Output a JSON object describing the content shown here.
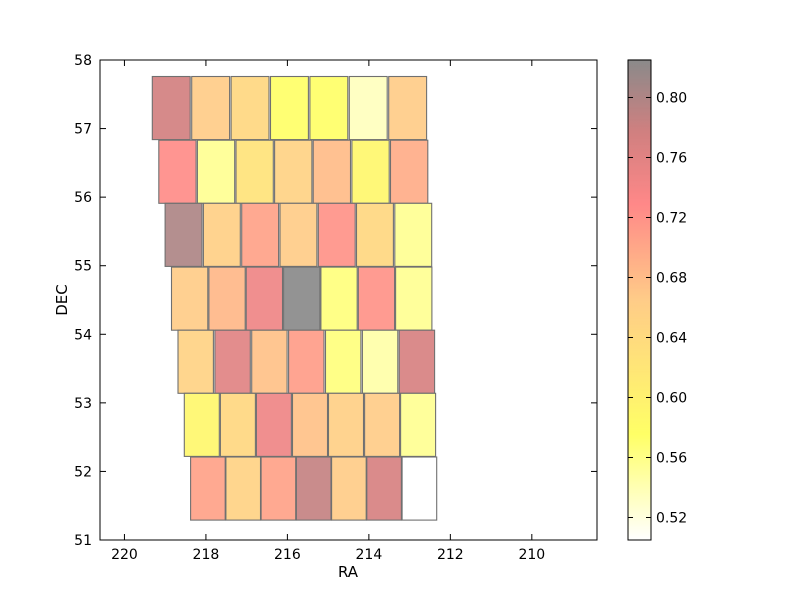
{
  "chart_data": {
    "type": "heatmap",
    "title": "",
    "xlabel": "RA",
    "ylabel": "DEC",
    "xlim": [
      220.6,
      208.4
    ],
    "ylim": [
      51,
      58
    ],
    "x_ticks": [
      220,
      218,
      216,
      214,
      212,
      210
    ],
    "y_ticks": [
      51,
      52,
      53,
      54,
      55,
      56,
      57,
      58
    ],
    "colorbar": {
      "colormap": "hot_r",
      "vmin": 0.505,
      "vmax": 0.825,
      "ticks": [
        "0.52",
        "0.56",
        "0.60",
        "0.64",
        "0.68",
        "0.72",
        "0.76",
        "0.80"
      ],
      "tick_values": [
        0.52,
        0.56,
        0.6,
        0.64,
        0.68,
        0.72,
        0.76,
        0.8
      ]
    },
    "cell_alpha": 0.4,
    "tile_size_dec": 0.92,
    "rows": [
      {
        "dec": 57.3,
        "ra_start": 218.85,
        "ra_step": 0.967,
        "ra_width": 0.93,
        "values": [
          0.775,
          0.665,
          0.645,
          0.575,
          0.575,
          0.535,
          0.665
        ]
      },
      {
        "dec": 56.37,
        "ra_start": 218.7,
        "ra_step": 0.948,
        "ra_width": 0.915,
        "values": [
          0.725,
          0.555,
          0.625,
          0.655,
          0.68,
          0.59,
          0.695
        ]
      },
      {
        "dec": 55.45,
        "ra_start": 218.55,
        "ra_step": 0.94,
        "ra_width": 0.905,
        "values": [
          0.8,
          0.66,
          0.705,
          0.665,
          0.72,
          0.645,
          0.555
        ]
      },
      {
        "dec": 54.52,
        "ra_start": 218.4,
        "ra_step": 0.917,
        "ra_width": 0.89,
        "values": [
          0.665,
          0.685,
          0.745,
          0.825,
          0.565,
          0.72,
          0.555
        ]
      },
      {
        "dec": 53.6,
        "ra_start": 218.25,
        "ra_step": 0.905,
        "ra_width": 0.87,
        "values": [
          0.655,
          0.76,
          0.675,
          0.71,
          0.565,
          0.545,
          0.77
        ]
      },
      {
        "dec": 52.68,
        "ra_start": 218.1,
        "ra_step": 0.885,
        "ra_width": 0.86,
        "values": [
          0.59,
          0.645,
          0.745,
          0.675,
          0.66,
          0.665,
          0.555
        ]
      },
      {
        "dec": 51.75,
        "ra_start": 217.95,
        "ra_step": 0.865,
        "ra_width": 0.85,
        "values": [
          0.705,
          0.655,
          0.705,
          0.785,
          0.665,
          0.77,
          0.505
        ]
      }
    ]
  }
}
